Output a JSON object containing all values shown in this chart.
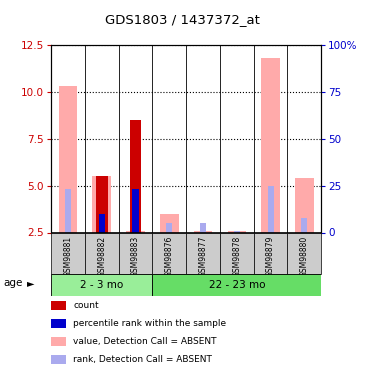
{
  "title": "GDS1803 / 1437372_at",
  "samples": [
    "GSM98881",
    "GSM98882",
    "GSM98883",
    "GSM98876",
    "GSM98877",
    "GSM98878",
    "GSM98879",
    "GSM98880"
  ],
  "groups": [
    "2 - 3 mo",
    "22 - 23 mo"
  ],
  "group_span1": [
    0,
    2
  ],
  "group_span2": [
    3,
    7
  ],
  "ylim_left": [
    2.5,
    12.5
  ],
  "ylim_right": [
    0,
    100
  ],
  "yticks_left": [
    2.5,
    5.0,
    7.5,
    10.0,
    12.5
  ],
  "yticks_right": [
    0,
    25,
    50,
    75,
    100
  ],
  "pink_bars": [
    10.3,
    5.5,
    2.6,
    3.5,
    2.6,
    2.6,
    11.8,
    5.4
  ],
  "red_bars": [
    null,
    5.5,
    8.5,
    null,
    null,
    null,
    null,
    null
  ],
  "blue_bars": [
    null,
    3.5,
    4.8,
    null,
    null,
    null,
    null,
    null
  ],
  "lb_bars": [
    4.8,
    3.5,
    4.8,
    3.0,
    3.0,
    2.6,
    5.0,
    3.3
  ],
  "color_pink": "#ffaaaa",
  "color_red": "#cc0000",
  "color_blue": "#0000cc",
  "color_lb": "#aaaaee",
  "color_group1": "#99ee99",
  "color_group2": "#66dd66",
  "color_gray": "#cccccc",
  "left_tick_color": "#cc0000",
  "right_tick_color": "#0000cc",
  "legend": [
    {
      "label": "count",
      "color": "#cc0000"
    },
    {
      "label": "percentile rank within the sample",
      "color": "#0000cc"
    },
    {
      "label": "value, Detection Call = ABSENT",
      "color": "#ffaaaa"
    },
    {
      "label": "rank, Detection Call = ABSENT",
      "color": "#aaaaee"
    }
  ]
}
